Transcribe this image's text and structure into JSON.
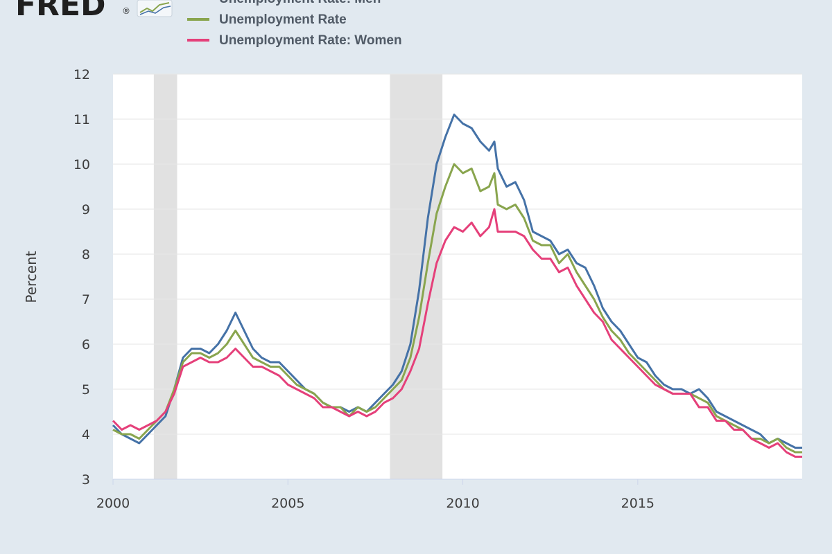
{
  "logo": {
    "text": "FRED",
    "mark": "®",
    "icon": "line-chart-icon"
  },
  "colors": {
    "men": "#4572a7",
    "total": "#89a54e",
    "women": "#e5407a",
    "recession": "#e1e1e1",
    "plot_background": "#ffffff",
    "grid": "#e6e6e6",
    "page_background": "#e1e9f0"
  },
  "chart_data": {
    "type": "line",
    "title": "",
    "xlabel": "",
    "ylabel": "Percent",
    "xlim": [
      2000.0,
      2019.7
    ],
    "ylim": [
      3,
      12
    ],
    "x_ticks": [
      "2000",
      "2005",
      "2010",
      "2015"
    ],
    "y_ticks": [
      "3",
      "4",
      "5",
      "6",
      "7",
      "8",
      "9",
      "10",
      "11",
      "12"
    ],
    "grid": true,
    "legend_position": "top",
    "recessions": [
      {
        "start": "2001-03",
        "end": "2001-11"
      },
      {
        "start": "2007-12",
        "end": "2009-06"
      }
    ],
    "series": [
      {
        "name": "Unemployment Rate: Men",
        "color": "#4572a7",
        "points": [
          [
            2000.0,
            4.2
          ],
          [
            2000.25,
            4.0
          ],
          [
            2000.5,
            3.9
          ],
          [
            2000.75,
            3.8
          ],
          [
            2001.0,
            4.0
          ],
          [
            2001.25,
            4.2
          ],
          [
            2001.5,
            4.4
          ],
          [
            2001.75,
            5.0
          ],
          [
            2002.0,
            5.7
          ],
          [
            2002.25,
            5.9
          ],
          [
            2002.5,
            5.9
          ],
          [
            2002.75,
            5.8
          ],
          [
            2003.0,
            6.0
          ],
          [
            2003.25,
            6.3
          ],
          [
            2003.5,
            6.7
          ],
          [
            2003.75,
            6.3
          ],
          [
            2004.0,
            5.9
          ],
          [
            2004.25,
            5.7
          ],
          [
            2004.5,
            5.6
          ],
          [
            2004.75,
            5.6
          ],
          [
            2005.0,
            5.4
          ],
          [
            2005.25,
            5.2
          ],
          [
            2005.5,
            5.0
          ],
          [
            2005.75,
            4.9
          ],
          [
            2006.0,
            4.7
          ],
          [
            2006.25,
            4.6
          ],
          [
            2006.5,
            4.6
          ],
          [
            2006.75,
            4.5
          ],
          [
            2007.0,
            4.6
          ],
          [
            2007.25,
            4.5
          ],
          [
            2007.5,
            4.7
          ],
          [
            2007.75,
            4.9
          ],
          [
            2008.0,
            5.1
          ],
          [
            2008.25,
            5.4
          ],
          [
            2008.5,
            6.0
          ],
          [
            2008.75,
            7.2
          ],
          [
            2009.0,
            8.8
          ],
          [
            2009.25,
            10.0
          ],
          [
            2009.5,
            10.6
          ],
          [
            2009.75,
            11.1
          ],
          [
            2010.0,
            10.9
          ],
          [
            2010.25,
            10.8
          ],
          [
            2010.5,
            10.5
          ],
          [
            2010.75,
            10.3
          ],
          [
            2010.9,
            10.5
          ],
          [
            2011.0,
            9.9
          ],
          [
            2011.25,
            9.5
          ],
          [
            2011.5,
            9.6
          ],
          [
            2011.75,
            9.2
          ],
          [
            2012.0,
            8.5
          ],
          [
            2012.25,
            8.4
          ],
          [
            2012.5,
            8.3
          ],
          [
            2012.75,
            8.0
          ],
          [
            2013.0,
            8.1
          ],
          [
            2013.25,
            7.8
          ],
          [
            2013.5,
            7.7
          ],
          [
            2013.75,
            7.3
          ],
          [
            2014.0,
            6.8
          ],
          [
            2014.25,
            6.5
          ],
          [
            2014.5,
            6.3
          ],
          [
            2014.75,
            6.0
          ],
          [
            2015.0,
            5.7
          ],
          [
            2015.25,
            5.6
          ],
          [
            2015.5,
            5.3
          ],
          [
            2015.75,
            5.1
          ],
          [
            2016.0,
            5.0
          ],
          [
            2016.25,
            5.0
          ],
          [
            2016.5,
            4.9
          ],
          [
            2016.75,
            5.0
          ],
          [
            2017.0,
            4.8
          ],
          [
            2017.25,
            4.5
          ],
          [
            2017.5,
            4.4
          ],
          [
            2017.75,
            4.3
          ],
          [
            2018.0,
            4.2
          ],
          [
            2018.25,
            4.1
          ],
          [
            2018.5,
            4.0
          ],
          [
            2018.75,
            3.8
          ],
          [
            2019.0,
            3.9
          ],
          [
            2019.25,
            3.8
          ],
          [
            2019.5,
            3.7
          ],
          [
            2019.7,
            3.7
          ]
        ]
      },
      {
        "name": "Unemployment Rate",
        "color": "#89a54e",
        "points": [
          [
            2000.0,
            4.1
          ],
          [
            2000.25,
            4.0
          ],
          [
            2000.5,
            4.0
          ],
          [
            2000.75,
            3.9
          ],
          [
            2001.0,
            4.1
          ],
          [
            2001.25,
            4.3
          ],
          [
            2001.5,
            4.5
          ],
          [
            2001.75,
            5.0
          ],
          [
            2002.0,
            5.6
          ],
          [
            2002.25,
            5.8
          ],
          [
            2002.5,
            5.8
          ],
          [
            2002.75,
            5.7
          ],
          [
            2003.0,
            5.8
          ],
          [
            2003.25,
            6.0
          ],
          [
            2003.5,
            6.3
          ],
          [
            2003.75,
            6.0
          ],
          [
            2004.0,
            5.7
          ],
          [
            2004.25,
            5.6
          ],
          [
            2004.5,
            5.5
          ],
          [
            2004.75,
            5.5
          ],
          [
            2005.0,
            5.3
          ],
          [
            2005.25,
            5.1
          ],
          [
            2005.5,
            5.0
          ],
          [
            2005.75,
            4.9
          ],
          [
            2006.0,
            4.7
          ],
          [
            2006.25,
            4.6
          ],
          [
            2006.5,
            4.6
          ],
          [
            2006.75,
            4.4
          ],
          [
            2007.0,
            4.6
          ],
          [
            2007.25,
            4.5
          ],
          [
            2007.5,
            4.6
          ],
          [
            2007.75,
            4.8
          ],
          [
            2008.0,
            5.0
          ],
          [
            2008.25,
            5.2
          ],
          [
            2008.5,
            5.7
          ],
          [
            2008.75,
            6.6
          ],
          [
            2009.0,
            7.8
          ],
          [
            2009.25,
            8.9
          ],
          [
            2009.5,
            9.5
          ],
          [
            2009.75,
            10.0
          ],
          [
            2010.0,
            9.8
          ],
          [
            2010.25,
            9.9
          ],
          [
            2010.5,
            9.4
          ],
          [
            2010.75,
            9.5
          ],
          [
            2010.9,
            9.8
          ],
          [
            2011.0,
            9.1
          ],
          [
            2011.25,
            9.0
          ],
          [
            2011.5,
            9.1
          ],
          [
            2011.75,
            8.8
          ],
          [
            2012.0,
            8.3
          ],
          [
            2012.25,
            8.2
          ],
          [
            2012.5,
            8.2
          ],
          [
            2012.75,
            7.8
          ],
          [
            2013.0,
            8.0
          ],
          [
            2013.25,
            7.6
          ],
          [
            2013.5,
            7.3
          ],
          [
            2013.75,
            7.0
          ],
          [
            2014.0,
            6.6
          ],
          [
            2014.25,
            6.3
          ],
          [
            2014.5,
            6.1
          ],
          [
            2014.75,
            5.8
          ],
          [
            2015.0,
            5.6
          ],
          [
            2015.25,
            5.4
          ],
          [
            2015.5,
            5.2
          ],
          [
            2015.75,
            5.0
          ],
          [
            2016.0,
            4.9
          ],
          [
            2016.25,
            4.9
          ],
          [
            2016.5,
            4.9
          ],
          [
            2016.75,
            4.8
          ],
          [
            2017.0,
            4.7
          ],
          [
            2017.25,
            4.4
          ],
          [
            2017.5,
            4.3
          ],
          [
            2017.75,
            4.2
          ],
          [
            2018.0,
            4.1
          ],
          [
            2018.25,
            3.9
          ],
          [
            2018.5,
            3.9
          ],
          [
            2018.75,
            3.8
          ],
          [
            2019.0,
            3.9
          ],
          [
            2019.25,
            3.7
          ],
          [
            2019.5,
            3.6
          ],
          [
            2019.7,
            3.6
          ]
        ]
      },
      {
        "name": "Unemployment Rate: Women",
        "color": "#e5407a",
        "points": [
          [
            2000.0,
            4.3
          ],
          [
            2000.25,
            4.1
          ],
          [
            2000.5,
            4.2
          ],
          [
            2000.75,
            4.1
          ],
          [
            2001.0,
            4.2
          ],
          [
            2001.25,
            4.3
          ],
          [
            2001.5,
            4.5
          ],
          [
            2001.75,
            4.9
          ],
          [
            2002.0,
            5.5
          ],
          [
            2002.25,
            5.6
          ],
          [
            2002.5,
            5.7
          ],
          [
            2002.75,
            5.6
          ],
          [
            2003.0,
            5.6
          ],
          [
            2003.25,
            5.7
          ],
          [
            2003.5,
            5.9
          ],
          [
            2003.75,
            5.7
          ],
          [
            2004.0,
            5.5
          ],
          [
            2004.25,
            5.5
          ],
          [
            2004.5,
            5.4
          ],
          [
            2004.75,
            5.3
          ],
          [
            2005.0,
            5.1
          ],
          [
            2005.25,
            5.0
          ],
          [
            2005.5,
            4.9
          ],
          [
            2005.75,
            4.8
          ],
          [
            2006.0,
            4.6
          ],
          [
            2006.25,
            4.6
          ],
          [
            2006.5,
            4.5
          ],
          [
            2006.75,
            4.4
          ],
          [
            2007.0,
            4.5
          ],
          [
            2007.25,
            4.4
          ],
          [
            2007.5,
            4.5
          ],
          [
            2007.75,
            4.7
          ],
          [
            2008.0,
            4.8
          ],
          [
            2008.25,
            5.0
          ],
          [
            2008.5,
            5.4
          ],
          [
            2008.75,
            5.9
          ],
          [
            2009.0,
            6.9
          ],
          [
            2009.25,
            7.8
          ],
          [
            2009.5,
            8.3
          ],
          [
            2009.75,
            8.6
          ],
          [
            2010.0,
            8.5
          ],
          [
            2010.25,
            8.7
          ],
          [
            2010.5,
            8.4
          ],
          [
            2010.75,
            8.6
          ],
          [
            2010.9,
            9.0
          ],
          [
            2011.0,
            8.5
          ],
          [
            2011.25,
            8.5
          ],
          [
            2011.5,
            8.5
          ],
          [
            2011.75,
            8.4
          ],
          [
            2012.0,
            8.1
          ],
          [
            2012.25,
            7.9
          ],
          [
            2012.5,
            7.9
          ],
          [
            2012.75,
            7.6
          ],
          [
            2013.0,
            7.7
          ],
          [
            2013.25,
            7.3
          ],
          [
            2013.5,
            7.0
          ],
          [
            2013.75,
            6.7
          ],
          [
            2014.0,
            6.5
          ],
          [
            2014.25,
            6.1
          ],
          [
            2014.5,
            5.9
          ],
          [
            2014.75,
            5.7
          ],
          [
            2015.0,
            5.5
          ],
          [
            2015.25,
            5.3
          ],
          [
            2015.5,
            5.1
          ],
          [
            2015.75,
            5.0
          ],
          [
            2016.0,
            4.9
          ],
          [
            2016.25,
            4.9
          ],
          [
            2016.5,
            4.9
          ],
          [
            2016.75,
            4.6
          ],
          [
            2017.0,
            4.6
          ],
          [
            2017.25,
            4.3
          ],
          [
            2017.5,
            4.3
          ],
          [
            2017.75,
            4.1
          ],
          [
            2018.0,
            4.1
          ],
          [
            2018.25,
            3.9
          ],
          [
            2018.5,
            3.8
          ],
          [
            2018.75,
            3.7
          ],
          [
            2019.0,
            3.8
          ],
          [
            2019.25,
            3.6
          ],
          [
            2019.5,
            3.5
          ],
          [
            2019.7,
            3.5
          ]
        ]
      }
    ]
  }
}
